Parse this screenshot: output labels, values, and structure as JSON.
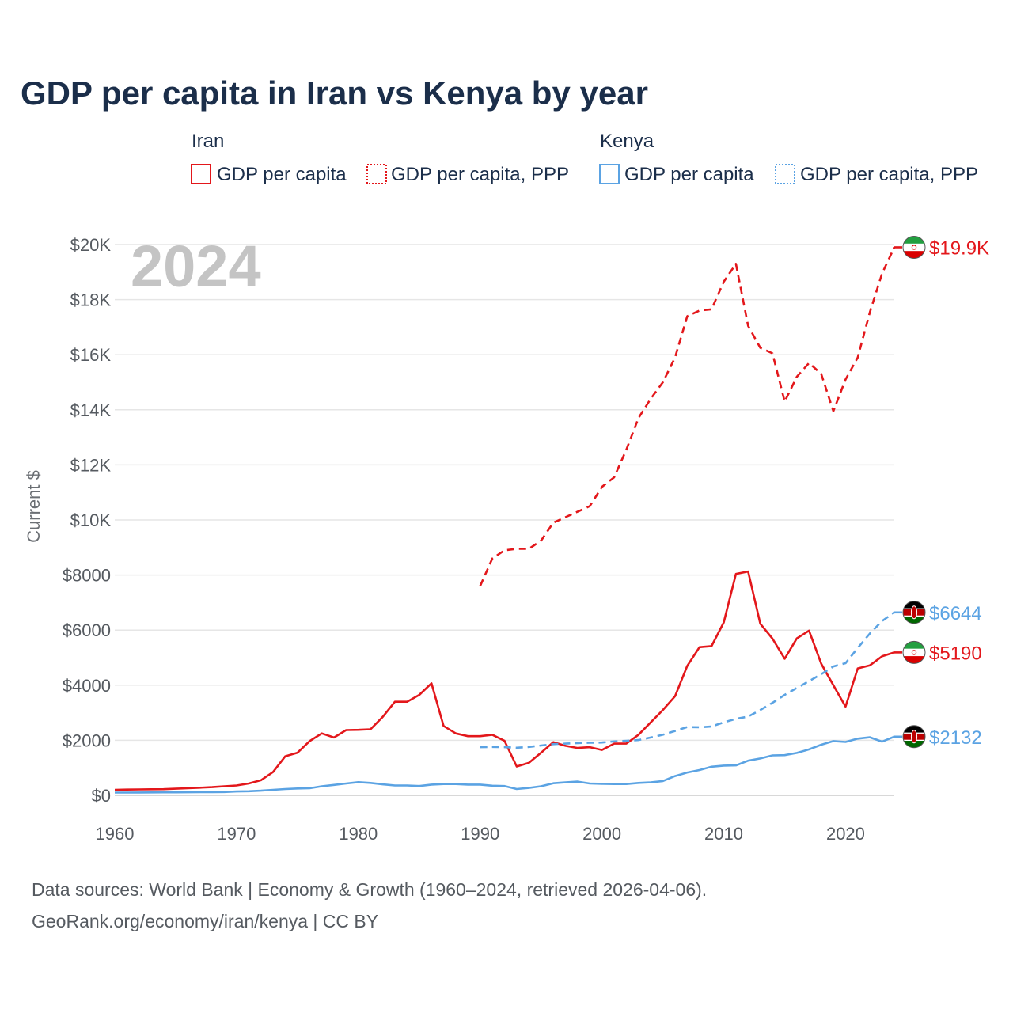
{
  "title": "GDP per capita in Iran vs Kenya by year",
  "year_label": "2024",
  "colors": {
    "iran": "#e3171b",
    "kenya": "#5ba3e3",
    "grid": "#e6e6e6",
    "text": "#1b2e4a"
  },
  "legend": {
    "groups": [
      {
        "country": "Iran",
        "items": [
          {
            "label": "GDP per capita",
            "style": "solid"
          },
          {
            "label": "GDP per capita, PPP",
            "style": "dotted"
          }
        ]
      },
      {
        "country": "Kenya",
        "items": [
          {
            "label": "GDP per capita",
            "style": "solid"
          },
          {
            "label": "GDP per capita, PPP",
            "style": "dotted"
          }
        ]
      }
    ]
  },
  "end_labels": [
    {
      "text": "$19.9K",
      "series": "iran_ppp",
      "flag": "iran"
    },
    {
      "text": "$6644",
      "series": "kenya_ppp",
      "flag": "kenya"
    },
    {
      "text": "$5190",
      "series": "iran_gdp",
      "flag": "iran"
    },
    {
      "text": "$2132",
      "series": "kenya_gdp",
      "flag": "kenya"
    }
  ],
  "source": {
    "line1": "Data sources: World Bank | Economy & Growth (1960–2024, retrieved 2026-04-06).",
    "line2": "GeoRank.org/economy/iran/kenya | CC BY"
  },
  "chart_data": {
    "type": "line",
    "title": "GDP per capita in Iran vs Kenya by year",
    "xlabel": "",
    "ylabel": "Current $",
    "xlim": [
      1960,
      2024
    ],
    "ylim": [
      0,
      20000
    ],
    "x_ticks": [
      1960,
      1970,
      1980,
      1990,
      2000,
      2010,
      2020
    ],
    "y_ticks": [
      0,
      2000,
      4000,
      6000,
      8000,
      10000,
      12000,
      14000,
      16000,
      18000,
      20000
    ],
    "y_tick_labels": [
      "$0",
      "$2000",
      "$4000",
      "$6000",
      "$8000",
      "$10K",
      "$12K",
      "$14K",
      "$16K",
      "$18K",
      "$20K"
    ],
    "series": [
      {
        "name": "Iran GDP per capita",
        "id": "iran_gdp",
        "color": "#e3171b",
        "dash": "solid",
        "x": [
          1960,
          1961,
          1962,
          1963,
          1964,
          1965,
          1966,
          1967,
          1968,
          1969,
          1970,
          1971,
          1972,
          1973,
          1974,
          1975,
          1976,
          1977,
          1978,
          1979,
          1980,
          1981,
          1982,
          1983,
          1984,
          1985,
          1986,
          1987,
          1988,
          1989,
          1990,
          1991,
          1992,
          1993,
          1994,
          1995,
          1996,
          1997,
          1998,
          1999,
          2000,
          2001,
          2002,
          2003,
          2004,
          2005,
          2006,
          2007,
          2008,
          2009,
          2010,
          2011,
          2012,
          2013,
          2014,
          2015,
          2016,
          2017,
          2018,
          2019,
          2020,
          2021,
          2022,
          2023,
          2024
        ],
        "values": [
          200,
          210,
          215,
          220,
          225,
          240,
          260,
          280,
          300,
          330,
          360,
          430,
          550,
          850,
          1420,
          1550,
          1970,
          2250,
          2100,
          2370,
          2380,
          2400,
          2850,
          3400,
          3400,
          3650,
          4070,
          2520,
          2250,
          2150,
          2150,
          2200,
          1980,
          1050,
          1180,
          1550,
          1930,
          1800,
          1720,
          1750,
          1650,
          1880,
          1880,
          2200,
          2650,
          3100,
          3600,
          4700,
          5380,
          5420,
          6280,
          8040,
          8130,
          6230,
          5690,
          4960,
          5700,
          5980,
          4780,
          4000,
          3220,
          4610,
          4720,
          5050,
          5190
        ]
      },
      {
        "name": "Iran GDP per capita, PPP",
        "id": "iran_ppp",
        "color": "#e3171b",
        "dash": "dashed",
        "x": [
          1990,
          1991,
          1992,
          1993,
          1994,
          1995,
          1996,
          1997,
          1998,
          1999,
          2000,
          2001,
          2002,
          2003,
          2004,
          2005,
          2006,
          2007,
          2008,
          2009,
          2010,
          2011,
          2012,
          2013,
          2014,
          2015,
          2016,
          2017,
          2018,
          2019,
          2020,
          2021,
          2022,
          2023,
          2024
        ],
        "values": [
          7600,
          8600,
          8900,
          8950,
          8950,
          9250,
          9900,
          10100,
          10300,
          10500,
          11200,
          11550,
          12550,
          13700,
          14400,
          15000,
          15900,
          17400,
          17600,
          17650,
          18650,
          19300,
          17050,
          16250,
          16050,
          14300,
          15200,
          15700,
          15300,
          13950,
          15100,
          15900,
          17550,
          18950,
          19900
        ]
      },
      {
        "name": "Kenya GDP per capita",
        "id": "kenya_gdp",
        "color": "#5ba3e3",
        "dash": "solid",
        "x": [
          1960,
          1961,
          1962,
          1963,
          1964,
          1965,
          1966,
          1967,
          1968,
          1969,
          1970,
          1971,
          1972,
          1973,
          1974,
          1975,
          1976,
          1977,
          1978,
          1979,
          1980,
          1981,
          1982,
          1983,
          1984,
          1985,
          1986,
          1987,
          1988,
          1989,
          1990,
          1991,
          1992,
          1993,
          1994,
          1995,
          1996,
          1997,
          1998,
          1999,
          2000,
          2001,
          2002,
          2003,
          2004,
          2005,
          2006,
          2007,
          2008,
          2009,
          2010,
          2011,
          2012,
          2013,
          2014,
          2015,
          2016,
          2017,
          2018,
          2019,
          2020,
          2021,
          2022,
          2023,
          2024
        ],
        "values": [
          100,
          102,
          104,
          106,
          108,
          110,
          112,
          115,
          118,
          122,
          140,
          150,
          170,
          200,
          230,
          250,
          260,
          330,
          380,
          430,
          480,
          450,
          400,
          360,
          360,
          340,
          390,
          410,
          410,
          390,
          390,
          350,
          340,
          230,
          270,
          330,
          440,
          470,
          500,
          430,
          420,
          410,
          410,
          450,
          470,
          520,
          700,
          830,
          920,
          1040,
          1080,
          1090,
          1260,
          1340,
          1450,
          1460,
          1540,
          1670,
          1840,
          1970,
          1940,
          2060,
          2110,
          1950,
          2132
        ]
      },
      {
        "name": "Kenya GDP per capita, PPP",
        "id": "kenya_ppp",
        "color": "#5ba3e3",
        "dash": "dashed",
        "x": [
          1990,
          1991,
          1992,
          1993,
          1994,
          1995,
          1996,
          1997,
          1998,
          1999,
          2000,
          2001,
          2002,
          2003,
          2004,
          2005,
          2006,
          2007,
          2008,
          2009,
          2010,
          2011,
          2012,
          2013,
          2014,
          2015,
          2016,
          2017,
          2018,
          2019,
          2020,
          2021,
          2022,
          2023,
          2024
        ],
        "values": [
          1750,
          1760,
          1750,
          1730,
          1760,
          1810,
          1860,
          1880,
          1900,
          1910,
          1920,
          1960,
          1980,
          2010,
          2100,
          2200,
          2340,
          2480,
          2470,
          2500,
          2650,
          2780,
          2860,
          3100,
          3360,
          3650,
          3900,
          4150,
          4400,
          4680,
          4800,
          5350,
          5880,
          6330,
          6644
        ]
      }
    ]
  }
}
